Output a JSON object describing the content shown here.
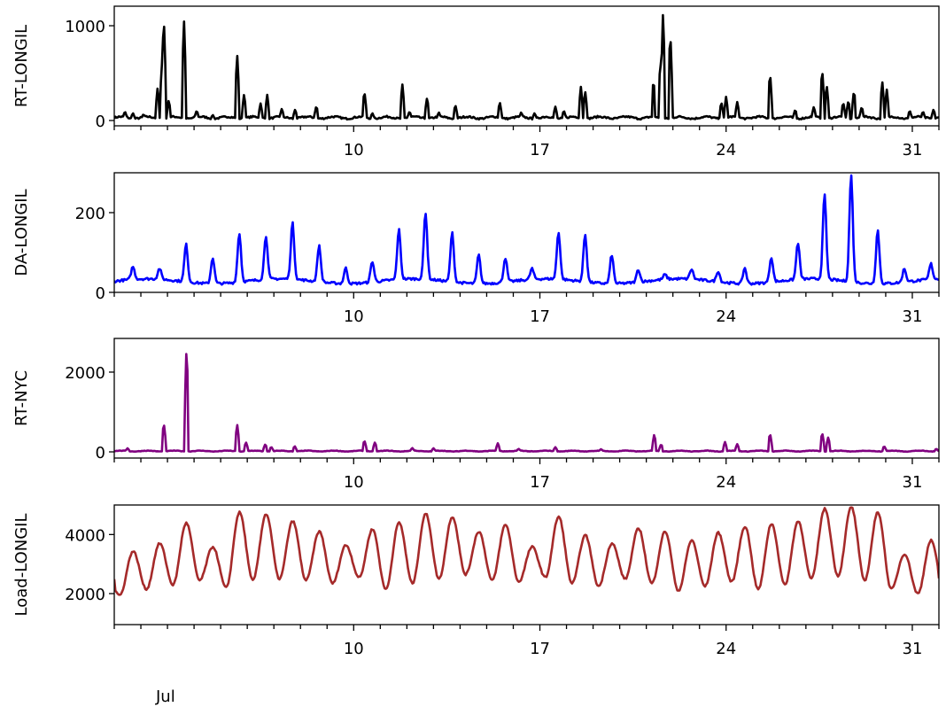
{
  "chart_data": [
    {
      "type": "line",
      "ylabel": "RT-LONGIL",
      "color": "#000000",
      "ylim": [
        -56,
        1206
      ],
      "yticks": [
        0,
        1000
      ],
      "x_unit": "day of July",
      "xlim": [
        1,
        32
      ],
      "xticks_major": [
        10,
        17,
        24,
        31
      ],
      "baseline": 30,
      "spikes": [
        [
          1.4,
          100
        ],
        [
          1.7,
          80
        ],
        [
          2.1,
          70
        ],
        [
          2.63,
          350
        ],
        [
          2.79,
          600
        ],
        [
          2.86,
          1130
        ],
        [
          3.05,
          220
        ],
        [
          3.62,
          1090
        ],
        [
          4.1,
          110
        ],
        [
          4.7,
          60
        ],
        [
          5.62,
          710
        ],
        [
          5.88,
          280
        ],
        [
          6.5,
          180
        ],
        [
          6.75,
          270
        ],
        [
          7.3,
          130
        ],
        [
          7.8,
          120
        ],
        [
          8.6,
          160
        ],
        [
          10.4,
          320
        ],
        [
          10.7,
          80
        ],
        [
          11.83,
          390
        ],
        [
          12.1,
          100
        ],
        [
          12.76,
          250
        ],
        [
          13.2,
          90
        ],
        [
          13.82,
          170
        ],
        [
          15.49,
          200
        ],
        [
          16.3,
          90
        ],
        [
          16.8,
          80
        ],
        [
          17.58,
          150
        ],
        [
          17.9,
          110
        ],
        [
          18.54,
          360
        ],
        [
          18.7,
          320
        ],
        [
          21.27,
          450
        ],
        [
          21.53,
          650
        ],
        [
          21.63,
          1160
        ],
        [
          21.9,
          960
        ],
        [
          23.82,
          200
        ],
        [
          24.0,
          250
        ],
        [
          24.42,
          200
        ],
        [
          25.65,
          520
        ],
        [
          26.6,
          120
        ],
        [
          27.3,
          150
        ],
        [
          27.61,
          560
        ],
        [
          27.78,
          390
        ],
        [
          28.4,
          200
        ],
        [
          28.6,
          220
        ],
        [
          28.81,
          330
        ],
        [
          29.1,
          150
        ],
        [
          29.87,
          420
        ],
        [
          30.04,
          330
        ],
        [
          30.9,
          110
        ],
        [
          31.4,
          100
        ],
        [
          31.8,
          120
        ]
      ]
    },
    {
      "type": "line",
      "ylabel": "DA-LONGIL",
      "color": "#0000ff",
      "ylim": [
        0,
        300
      ],
      "yticks": [
        0,
        200
      ],
      "xlim": [
        1,
        32
      ],
      "xticks_major": [
        10,
        17,
        24,
        31
      ],
      "baseline": 28,
      "daily_peaks": [
        60,
        55,
        122,
        93,
        151,
        138,
        169,
        118,
        67,
        80,
        153,
        196,
        151,
        100,
        89,
        55,
        147,
        147,
        100,
        60,
        40,
        53,
        55,
        67,
        91,
        120,
        240,
        296,
        162,
        62,
        67
      ]
    },
    {
      "type": "line",
      "ylabel": "RT-NYC",
      "color": "#800080",
      "ylim": [
        -155,
        2844
      ],
      "yticks": [
        0,
        2000
      ],
      "xlim": [
        1,
        32
      ],
      "xticks_major": [
        10,
        17,
        24,
        31
      ],
      "baseline": 20,
      "spikes": [
        [
          1.5,
          90
        ],
        [
          2.86,
          750
        ],
        [
          3.72,
          2720
        ],
        [
          5.62,
          700
        ],
        [
          5.95,
          250
        ],
        [
          6.68,
          200
        ],
        [
          6.9,
          130
        ],
        [
          7.78,
          150
        ],
        [
          10.4,
          300
        ],
        [
          10.8,
          250
        ],
        [
          12.2,
          100
        ],
        [
          13.0,
          90
        ],
        [
          15.42,
          220
        ],
        [
          16.2,
          80
        ],
        [
          17.58,
          120
        ],
        [
          19.3,
          70
        ],
        [
          21.3,
          450
        ],
        [
          21.56,
          200
        ],
        [
          23.96,
          250
        ],
        [
          24.42,
          200
        ],
        [
          25.65,
          480
        ],
        [
          27.61,
          500
        ],
        [
          27.84,
          380
        ],
        [
          29.94,
          150
        ],
        [
          31.9,
          80
        ]
      ]
    },
    {
      "type": "line",
      "ylabel": "Load-LONGIL",
      "color": "#a52a2a",
      "ylim": [
        950,
        5000
      ],
      "yticks": [
        2000,
        4000
      ],
      "xlim": [
        1,
        32
      ],
      "xticks_major": [
        10,
        17,
        24,
        31
      ],
      "daily_min": [
        1950,
        2150,
        2300,
        2450,
        2200,
        2450,
        2500,
        2450,
        2350,
        2550,
        2150,
        2350,
        2500,
        2650,
        2450,
        2400,
        2550,
        2350,
        2250,
        2500,
        2350,
        2100,
        2250,
        2400,
        2150,
        2300,
        2500,
        2600,
        2450,
        2150,
        2000
      ],
      "daily_max": [
        3430,
        3700,
        4390,
        3580,
        4750,
        4690,
        4450,
        4100,
        3640,
        4180,
        4400,
        4700,
        4600,
        4100,
        4330,
        3580,
        4600,
        3970,
        3700,
        4200,
        4100,
        3800,
        4060,
        4270,
        4360,
        4450,
        4870,
        4930,
        4750,
        3340,
        3800
      ]
    }
  ],
  "xaxis": {
    "month_label": "Jul"
  }
}
